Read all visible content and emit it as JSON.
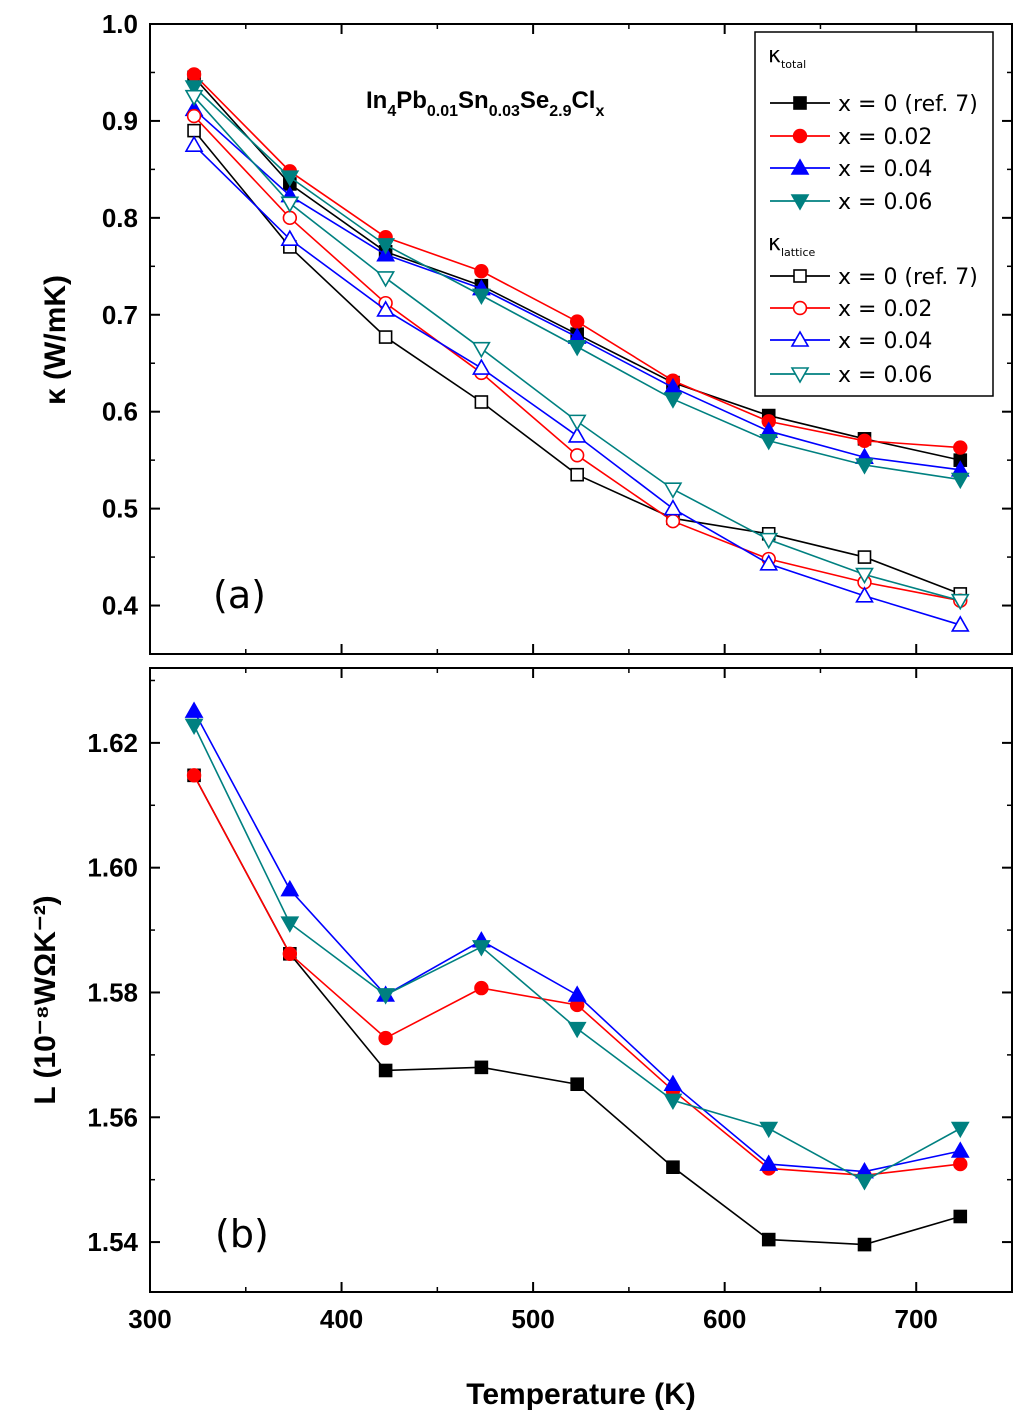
{
  "chart_data": [
    {
      "type": "line",
      "panel_label": "(a)",
      "ylabel": "κ (W/mK)",
      "xlabel": "Temperature (K)",
      "xlim": [
        300,
        750
      ],
      "ylim": [
        0.35,
        1.0
      ],
      "x_ticks": [
        "300",
        "400",
        "500",
        "600",
        "700"
      ],
      "y_ticks": [
        "0.4",
        "0.5",
        "0.6",
        "0.7",
        "0.8",
        "0.9",
        "1.0"
      ],
      "annotation": {
        "base": [
          "In",
          "Pb",
          "Sn",
          "Se",
          "Cl"
        ],
        "subs": [
          "4",
          "0.01",
          "0.03",
          "2.9",
          "x"
        ]
      },
      "legend": {
        "groups": [
          {
            "symbol": "κ",
            "subscript": "total",
            "start": 0
          },
          {
            "symbol": "κ",
            "subscript": "lattice",
            "start": 4
          }
        ]
      },
      "x": [
        323,
        373,
        423,
        473,
        523,
        573,
        623,
        673,
        723
      ],
      "series": [
        {
          "name": "x = 0 (ref. 7)",
          "color": "#000000",
          "marker": "square",
          "filled": true,
          "values": [
            0.945,
            0.835,
            0.765,
            0.73,
            0.68,
            0.63,
            0.596,
            0.572,
            0.55
          ]
        },
        {
          "name": "x = 0.02",
          "color": "#ff0000",
          "marker": "circle",
          "filled": true,
          "values": [
            0.948,
            0.848,
            0.78,
            0.745,
            0.693,
            0.632,
            0.59,
            0.57,
            0.563
          ]
        },
        {
          "name": "x = 0.04",
          "color": "#0000ff",
          "marker": "triangle-up",
          "filled": true,
          "values": [
            0.912,
            0.823,
            0.762,
            0.727,
            0.677,
            0.625,
            0.58,
            0.553,
            0.54
          ]
        },
        {
          "name": "x = 0.06",
          "color": "#008080",
          "marker": "triangle-down",
          "filled": true,
          "values": [
            0.935,
            0.842,
            0.772,
            0.72,
            0.667,
            0.613,
            0.57,
            0.545,
            0.53
          ]
        },
        {
          "name": "x = 0 (ref. 7)",
          "color": "#000000",
          "marker": "square",
          "filled": false,
          "values": [
            0.89,
            0.77,
            0.677,
            0.61,
            0.535,
            0.49,
            0.474,
            0.45,
            0.412
          ]
        },
        {
          "name": "x = 0.02",
          "color": "#ff0000",
          "marker": "circle",
          "filled": false,
          "values": [
            0.905,
            0.8,
            0.712,
            0.64,
            0.555,
            0.487,
            0.448,
            0.424,
            0.405
          ]
        },
        {
          "name": "x = 0.04",
          "color": "#0000ff",
          "marker": "triangle-up",
          "filled": false,
          "values": [
            0.875,
            0.778,
            0.705,
            0.645,
            0.575,
            0.5,
            0.443,
            0.41,
            0.38
          ]
        },
        {
          "name": "x = 0.06",
          "color": "#008080",
          "marker": "triangle-down",
          "filled": false,
          "values": [
            0.925,
            0.815,
            0.738,
            0.665,
            0.59,
            0.52,
            0.468,
            0.432,
            0.405
          ]
        }
      ]
    },
    {
      "type": "line",
      "panel_label": "(b)",
      "ylabel": "L (10⁻⁸WΩK⁻²)",
      "xlabel": "Temperature (K)",
      "xlim": [
        300,
        750
      ],
      "ylim": [
        1.532,
        1.632
      ],
      "x_ticks": [
        "300",
        "400",
        "500",
        "600",
        "700"
      ],
      "y_ticks": [
        "1.54",
        "1.56",
        "1.58",
        "1.60",
        "1.62"
      ],
      "x": [
        323,
        373,
        423,
        473,
        523,
        573,
        623,
        673,
        723
      ],
      "series": [
        {
          "name": "x = 0 (ref. 7)",
          "color": "#000000",
          "marker": "square",
          "filled": true,
          "values": [
            1.6148,
            1.5862,
            1.5675,
            1.568,
            1.5653,
            1.552,
            1.5404,
            1.5396,
            1.5441
          ]
        },
        {
          "name": "x = 0.02",
          "color": "#ff0000",
          "marker": "circle",
          "filled": true,
          "values": [
            1.6148,
            1.5862,
            1.5727,
            1.5807,
            1.578,
            1.5643,
            1.5518,
            1.5507,
            1.5525
          ]
        },
        {
          "name": "x = 0.04",
          "color": "#0000ff",
          "marker": "triangle-up",
          "filled": true,
          "values": [
            1.6251,
            1.5965,
            1.5796,
            1.5883,
            1.5796,
            1.5653,
            1.5525,
            1.5513,
            1.5546
          ]
        },
        {
          "name": "x = 0.06",
          "color": "#008080",
          "marker": "triangle-down",
          "filled": true,
          "values": [
            1.6228,
            1.5911,
            1.5796,
            1.5873,
            1.5742,
            1.5627,
            1.5582,
            1.5498,
            1.5582
          ]
        }
      ]
    }
  ]
}
